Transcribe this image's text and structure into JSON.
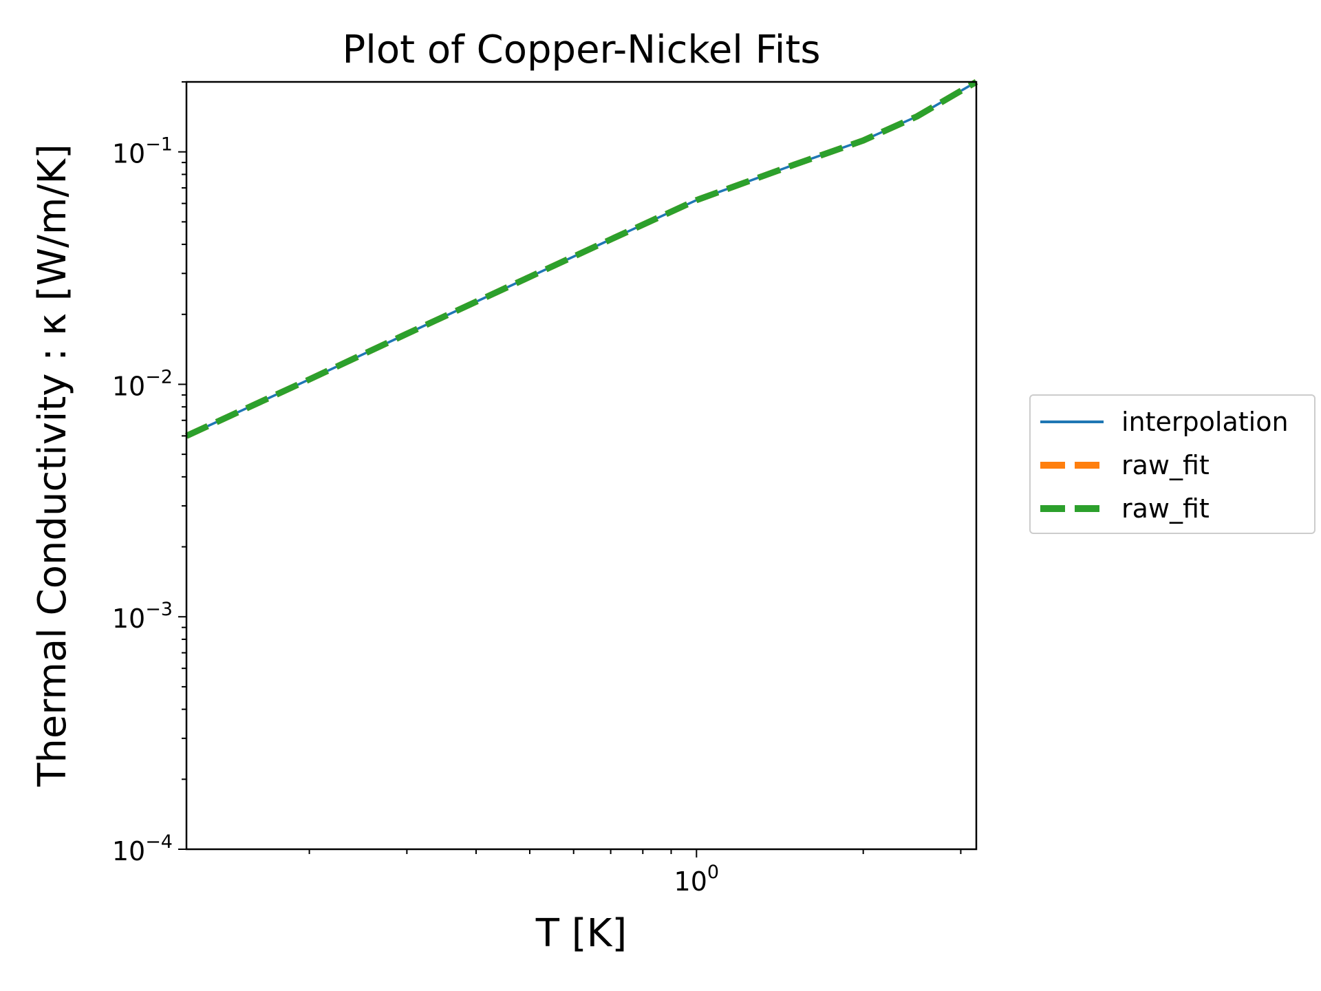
{
  "chart_data": {
    "type": "line",
    "title": "Plot of Copper-Nickel Fits",
    "xlabel": "T [K]",
    "ylabel": "Thermal Conductivity : κ [W/m/K]",
    "xscale": "log",
    "yscale": "log",
    "xlim": [
      0.12,
      3.2
    ],
    "ylim": [
      0.0001,
      0.2
    ],
    "x_tick_labels": [
      {
        "base": "10",
        "exp": "0",
        "value": 1
      }
    ],
    "y_tick_labels": [
      {
        "base": "10",
        "exp": "−4",
        "value": 0.0001
      },
      {
        "base": "10",
        "exp": "−3",
        "value": 0.001
      },
      {
        "base": "10",
        "exp": "−2",
        "value": 0.01
      },
      {
        "base": "10",
        "exp": "−1",
        "value": 0.1
      }
    ],
    "grid": false,
    "legend_position": "center-right-outside",
    "series": [
      {
        "name": "interpolation",
        "color": "#1f77b4",
        "style": "solid",
        "x": [
          0.12,
          0.2,
          0.3,
          0.5,
          0.7,
          1.0,
          1.5,
          2.0,
          2.5,
          3.2
        ],
        "y": [
          0.006,
          0.0105,
          0.0165,
          0.029,
          0.042,
          0.062,
          0.088,
          0.112,
          0.142,
          0.2
        ]
      },
      {
        "name": "raw_fit",
        "color": "#ff7f0e",
        "style": "dashed",
        "x": [
          0.12,
          0.2,
          0.3,
          0.5,
          0.7,
          1.0,
          1.5,
          2.0,
          2.5,
          3.2
        ],
        "y": [
          0.006,
          0.0105,
          0.0165,
          0.029,
          0.042,
          0.062,
          0.088,
          0.112,
          0.142,
          0.2
        ]
      },
      {
        "name": "raw_fit",
        "color": "#2ca02c",
        "style": "dashed",
        "x": [
          0.12,
          0.2,
          0.3,
          0.5,
          0.7,
          1.0,
          1.5,
          2.0,
          2.5,
          3.2
        ],
        "y": [
          0.006,
          0.0105,
          0.0165,
          0.029,
          0.042,
          0.062,
          0.088,
          0.112,
          0.142,
          0.2
        ]
      }
    ]
  }
}
